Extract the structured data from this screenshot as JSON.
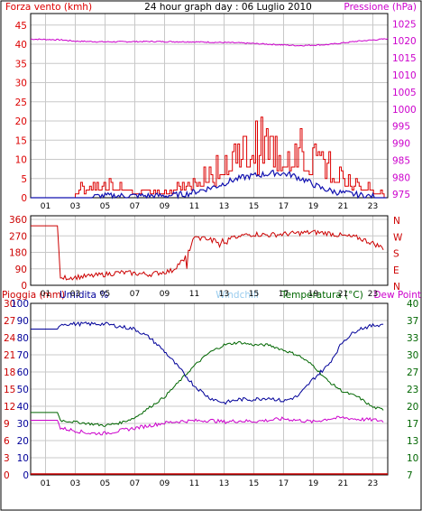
{
  "header": {
    "wind_label": "Forza vento (kmh)",
    "title": "24 hour graph day : 06 Luglio 2010",
    "pressure_label": "Pressione (hPa)"
  },
  "colors": {
    "wind_red": "#dd0000",
    "wind_avg_blue": "#1010b0",
    "pressure_magenta": "#cc00cc",
    "direction_red": "#cc0000",
    "humidity_blue": "#000099",
    "temperature_green": "#006600",
    "dewpoint_magenta": "#cc00cc",
    "rain_red": "#cc0000",
    "windchill_lightblue": "#99ccee",
    "grid": "#c8c8c8"
  },
  "chart_data": [
    {
      "type": "line",
      "x_ticks": [
        "01",
        "03",
        "05",
        "07",
        "09",
        "11",
        "13",
        "15",
        "17",
        "19",
        "21",
        "23"
      ],
      "x_hours": [
        1,
        3,
        5,
        7,
        9,
        11,
        13,
        15,
        17,
        19,
        21,
        23
      ],
      "xlim": [
        0,
        24
      ],
      "ylabel_left": "Forza vento (kmh)",
      "ylabel_right": "Pressione (hPa)",
      "y_left_ticks": [
        0,
        5,
        10,
        15,
        20,
        25,
        30,
        35,
        40,
        45
      ],
      "ylim_left": [
        0,
        48
      ],
      "y_right_ticks": [
        975,
        980,
        985,
        990,
        995,
        1000,
        1005,
        1010,
        1015,
        1020,
        1025
      ],
      "ylim_right": [
        974,
        1028
      ],
      "pressure": {
        "x": [
          0,
          2,
          3,
          5,
          8,
          11,
          14,
          16,
          18,
          20,
          22,
          24
        ],
        "y": [
          1020.5,
          1020.3,
          1019.9,
          1019.7,
          1019.8,
          1019.7,
          1019.4,
          1019.0,
          1018.6,
          1018.9,
          1019.9,
          1020.6
        ]
      },
      "wind_gust": {
        "x": [
          0,
          2.9,
          3.2,
          4.5,
          5.5,
          6.5,
          8,
          9.5,
          10.5,
          11.5,
          12.5,
          13.5,
          14.5,
          15.5,
          16.5,
          17.5,
          18.5,
          19.5,
          20.5,
          21.5,
          22.5,
          23.5,
          24
        ],
        "y": [
          0,
          0,
          3,
          5,
          4,
          3,
          2,
          3,
          4,
          6,
          10,
          14,
          16,
          17,
          15,
          16,
          14,
          11,
          8,
          5,
          4,
          2,
          0
        ]
      },
      "wind_avg": {
        "x": [
          0,
          3,
          5,
          7,
          9,
          10.5,
          11.5,
          12.5,
          13.5,
          14.5,
          15.5,
          16.5,
          17.5,
          18.5,
          19.5,
          20.5,
          21.5,
          22.5,
          24
        ],
        "y": [
          0,
          0,
          0.5,
          0.5,
          0.5,
          1,
          2,
          3,
          4.5,
          5.5,
          6,
          6.5,
          6,
          4.5,
          2.5,
          1.5,
          1,
          0.5,
          0
        ]
      }
    },
    {
      "type": "line",
      "x_ticks": [
        "01",
        "03",
        "05",
        "07",
        "09",
        "11",
        "13",
        "15",
        "17",
        "19",
        "21",
        "23"
      ],
      "ylabel_left": "",
      "y_left_ticks": [
        0,
        90,
        180,
        270,
        360
      ],
      "ylim": [
        0,
        380
      ],
      "y_right_labels": [
        "N",
        "W",
        "S",
        "E",
        "N"
      ],
      "direction": {
        "x": [
          0,
          1.8,
          2,
          4,
          6,
          8,
          9.5,
          10.5,
          11,
          12,
          13,
          13.5,
          14,
          15,
          16,
          17,
          18,
          19,
          20,
          21,
          22,
          23,
          23.8
        ],
        "y": [
          325,
          325,
          40,
          50,
          70,
          60,
          80,
          160,
          260,
          250,
          240,
          255,
          270,
          280,
          275,
          280,
          285,
          290,
          285,
          270,
          260,
          230,
          200
        ]
      }
    },
    {
      "type": "line",
      "x_ticks": [
        "01",
        "03",
        "05",
        "07",
        "09",
        "11",
        "13",
        "15",
        "17",
        "19",
        "21",
        "23"
      ],
      "ylabel_left": "Pioggia (mm)",
      "legend": [
        "Umidita %",
        "Windchill",
        "Temperatura (°C)",
        "Dew Point"
      ],
      "y_rain_ticks": [
        0,
        3,
        6,
        9,
        12,
        15,
        18,
        21,
        24,
        27,
        30
      ],
      "y_hum_ticks": [
        0,
        10,
        20,
        30,
        40,
        50,
        60,
        70,
        80,
        90,
        100
      ],
      "ylim_left": [
        0,
        100
      ],
      "y_right_ticks": [
        7,
        10,
        13,
        17,
        20,
        23,
        27,
        30,
        33,
        37,
        40
      ],
      "ylim_right": [
        7,
        40
      ],
      "humidity": {
        "x": [
          0,
          1.8,
          2,
          5,
          7,
          8,
          9,
          10,
          11,
          12,
          13,
          14,
          15,
          16,
          17,
          18,
          19,
          20,
          21,
          22,
          23,
          23.8
        ],
        "y": [
          85,
          85,
          88,
          88,
          85,
          80,
          72,
          62,
          52,
          45,
          42,
          44,
          44,
          45,
          43,
          46,
          56,
          64,
          78,
          85,
          87,
          88
        ]
      },
      "temperature": {
        "x": [
          0,
          1.8,
          2,
          3.5,
          5,
          6,
          7,
          8,
          9,
          10,
          11,
          12,
          13,
          14,
          15,
          16,
          17,
          18,
          19,
          20,
          21,
          22,
          23,
          23.8
        ],
        "y": [
          19,
          19,
          17.5,
          17,
          16.5,
          17,
          18,
          20,
          22,
          25,
          28,
          30.5,
          32,
          32.5,
          32,
          32,
          31,
          30,
          28,
          25,
          23,
          22,
          20,
          19.5
        ]
      },
      "dewpoint": {
        "x": [
          0,
          1.8,
          2,
          3,
          4,
          5,
          6,
          7,
          8,
          9,
          10,
          11,
          12,
          13,
          14,
          15,
          16,
          17,
          18,
          19,
          20,
          21,
          22,
          23,
          23.8
        ],
        "y": [
          17.5,
          17.5,
          16,
          15.5,
          15,
          15,
          15.5,
          16,
          16.5,
          17,
          17.3,
          17.4,
          17.5,
          17.2,
          17.4,
          17.3,
          17.5,
          17.8,
          17.5,
          17.2,
          17.8,
          18,
          17.7,
          17.6,
          17.3
        ]
      },
      "rain": {
        "x": [
          0,
          24
        ],
        "y": [
          0,
          0
        ]
      }
    }
  ]
}
